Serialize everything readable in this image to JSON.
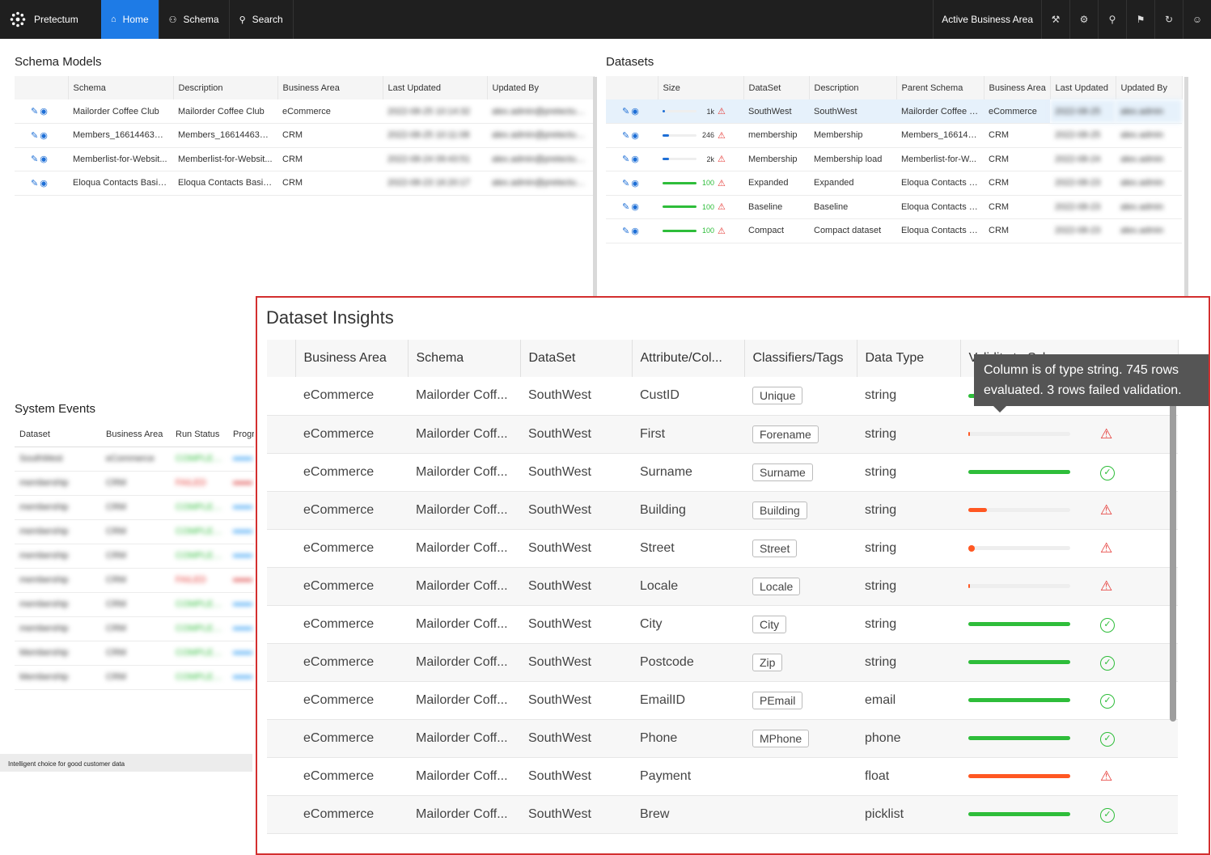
{
  "nav": {
    "brand": "Pretectum",
    "tabs": [
      {
        "label": "Home",
        "icon": "home-icon",
        "active": true
      },
      {
        "label": "Schema",
        "icon": "schema-icon",
        "active": false
      },
      {
        "label": "Search",
        "icon": "search-icon",
        "active": false
      }
    ],
    "active_area": "Active Business Area",
    "right_icons": [
      "tools-icon",
      "settings-icon",
      "search-icon",
      "wrench-icon",
      "refresh-icon",
      "user-icon"
    ]
  },
  "schema_models": {
    "title": "Schema Models",
    "columns": [
      "Schema",
      "Description",
      "Business Area",
      "Last Updated",
      "Updated By"
    ],
    "rows": [
      {
        "schema": "Mailorder Coffee Club",
        "description": "Mailorder Coffee Club",
        "area": "eCommerce",
        "updated": "2022-08-25 10:14:32",
        "by": "alex.admin@pretectum.io"
      },
      {
        "schema": "Members_1661446300...",
        "description": "Members_1661446300...",
        "area": "CRM",
        "updated": "2022-08-25 10:11:08",
        "by": "alex.admin@pretectum.io"
      },
      {
        "schema": "Memberlist-for-Websit...",
        "description": "Memberlist-for-Websit...",
        "area": "CRM",
        "updated": "2022-08-24 09:43:51",
        "by": "alex.admin@pretectum.io"
      },
      {
        "schema": "Eloqua Contacts Basic_...",
        "description": "Eloqua Contacts Basic_...",
        "area": "CRM",
        "updated": "2022-08-23 16:20:17",
        "by": "alex.admin@pretectum.io"
      }
    ]
  },
  "datasets": {
    "title": "Datasets",
    "columns": [
      "Size",
      "DataSet",
      "Description",
      "Parent Schema",
      "Business Area",
      "Last Updated",
      "Updated By"
    ],
    "rows": [
      {
        "size": "1k",
        "size_pct": 0.05,
        "color": "#1e6fd6",
        "dataset": "SouthWest",
        "description": "SouthWest",
        "parent": "Mailorder Coffee C...",
        "area": "eCommerce",
        "updated": "2022-08-25",
        "by": "alex.admin"
      },
      {
        "size": "246",
        "size_pct": 0.2,
        "color": "#1e6fd6",
        "dataset": "membership",
        "description": "Membership",
        "parent": "Members_1661446...",
        "area": "CRM",
        "updated": "2022-08-25",
        "by": "alex.admin"
      },
      {
        "size": "2k",
        "size_pct": 0.2,
        "color": "#1e6fd6",
        "dataset": "Membership",
        "description": "Membership load",
        "parent": "Memberlist-for-W...",
        "area": "CRM",
        "updated": "2022-08-24",
        "by": "alex.admin"
      },
      {
        "size": "100",
        "size_pct": 1.0,
        "color": "#2ebd3a",
        "dataset": "Expanded",
        "description": "Expanded",
        "parent": "Eloqua Contacts B...",
        "area": "CRM",
        "updated": "2022-08-23",
        "by": "alex.admin"
      },
      {
        "size": "100",
        "size_pct": 1.0,
        "color": "#2ebd3a",
        "dataset": "Baseline",
        "description": "Baseline",
        "parent": "Eloqua Contacts B...",
        "area": "CRM",
        "updated": "2022-08-23",
        "by": "alex.admin"
      },
      {
        "size": "100",
        "size_pct": 1.0,
        "color": "#2ebd3a",
        "dataset": "Compact",
        "description": "Compact dataset",
        "parent": "Eloqua Contacts B...",
        "area": "CRM",
        "updated": "2022-08-23",
        "by": "alex.admin"
      }
    ]
  },
  "system_events": {
    "title": "System Events",
    "columns": [
      "Dataset",
      "Business Area",
      "Run Status",
      "Progr"
    ],
    "rows": [
      {
        "dataset": "SouthWest",
        "area": "eCommerce",
        "status": "COMPLETED",
        "status_color": "#2ebd3a"
      },
      {
        "dataset": "membership",
        "area": "CRM",
        "status": "FAILED",
        "status_color": "#e53935"
      },
      {
        "dataset": "membership",
        "area": "CRM",
        "status": "COMPLETED",
        "status_color": "#2ebd3a"
      },
      {
        "dataset": "membership",
        "area": "CRM",
        "status": "COMPLETED",
        "status_color": "#2ebd3a"
      },
      {
        "dataset": "membership",
        "area": "CRM",
        "status": "COMPLETED",
        "status_color": "#2ebd3a"
      },
      {
        "dataset": "membership",
        "area": "CRM",
        "status": "FAILED",
        "status_color": "#e53935"
      },
      {
        "dataset": "membership",
        "area": "CRM",
        "status": "COMPLETED",
        "status_color": "#2ebd3a"
      },
      {
        "dataset": "membership",
        "area": "CRM",
        "status": "COMPLETED",
        "status_color": "#2ebd3a"
      },
      {
        "dataset": "Membership",
        "area": "CRM",
        "status": "COMPLETED",
        "status_color": "#2ebd3a"
      },
      {
        "dataset": "Membership",
        "area": "CRM",
        "status": "COMPLETED",
        "status_color": "#2ebd3a"
      }
    ]
  },
  "footer": {
    "text": "Intelligent choice for good customer data"
  },
  "insights": {
    "title": "Dataset Insights",
    "columns": [
      "Business Area",
      "Schema",
      "DataSet",
      "Attribute/Col...",
      "Classifiers/Tags",
      "Data Type",
      "Validity to Schema"
    ],
    "tooltip": "Column is of type string. 745 rows evaluated. 3 rows failed validation.",
    "rows": [
      {
        "area": "eCommerce",
        "schema": "Mailorder Coff...",
        "dataset": "SouthWest",
        "attribute": "CustID",
        "tag": "Unique",
        "type": "string",
        "validity": 1.0,
        "color": "#2ebd3a",
        "ok": true
      },
      {
        "area": "eCommerce",
        "schema": "Mailorder Coff...",
        "dataset": "SouthWest",
        "attribute": "First",
        "tag": "Forename",
        "type": "string",
        "validity": 0.01,
        "color": "#ff5722",
        "ok": false
      },
      {
        "area": "eCommerce",
        "schema": "Mailorder Coff...",
        "dataset": "SouthWest",
        "attribute": "Surname",
        "tag": "Surname",
        "type": "string",
        "validity": 1.0,
        "color": "#2ebd3a",
        "ok": true
      },
      {
        "area": "eCommerce",
        "schema": "Mailorder Coff...",
        "dataset": "SouthWest",
        "attribute": "Building",
        "tag": "Building",
        "type": "string",
        "validity": 0.18,
        "color": "#ff5722",
        "ok": false
      },
      {
        "area": "eCommerce",
        "schema": "Mailorder Coff...",
        "dataset": "SouthWest",
        "attribute": "Street",
        "tag": "Street",
        "type": "string",
        "validity": 0.06,
        "color": "#ff5722",
        "ok": false
      },
      {
        "area": "eCommerce",
        "schema": "Mailorder Coff...",
        "dataset": "SouthWest",
        "attribute": "Locale",
        "tag": "Locale",
        "type": "string",
        "validity": 0.01,
        "color": "#ff5722",
        "ok": false
      },
      {
        "area": "eCommerce",
        "schema": "Mailorder Coff...",
        "dataset": "SouthWest",
        "attribute": "City",
        "tag": "City",
        "type": "string",
        "validity": 1.0,
        "color": "#2ebd3a",
        "ok": true
      },
      {
        "area": "eCommerce",
        "schema": "Mailorder Coff...",
        "dataset": "SouthWest",
        "attribute": "Postcode",
        "tag": "Zip",
        "type": "string",
        "validity": 1.0,
        "color": "#2ebd3a",
        "ok": true
      },
      {
        "area": "eCommerce",
        "schema": "Mailorder Coff...",
        "dataset": "SouthWest",
        "attribute": "EmailID",
        "tag": "PEmail",
        "type": "email",
        "validity": 1.0,
        "color": "#2ebd3a",
        "ok": true
      },
      {
        "area": "eCommerce",
        "schema": "Mailorder Coff...",
        "dataset": "SouthWest",
        "attribute": "Phone",
        "tag": "MPhone",
        "type": "phone",
        "validity": 1.0,
        "color": "#2ebd3a",
        "ok": true
      },
      {
        "area": "eCommerce",
        "schema": "Mailorder Coff...",
        "dataset": "SouthWest",
        "attribute": "Payment",
        "tag": "",
        "type": "float",
        "validity": 1.0,
        "color": "#ff5722",
        "ok": false
      },
      {
        "area": "eCommerce",
        "schema": "Mailorder Coff...",
        "dataset": "SouthWest",
        "attribute": "Brew",
        "tag": "",
        "type": "picklist",
        "validity": 1.0,
        "color": "#2ebd3a",
        "ok": true
      }
    ]
  }
}
